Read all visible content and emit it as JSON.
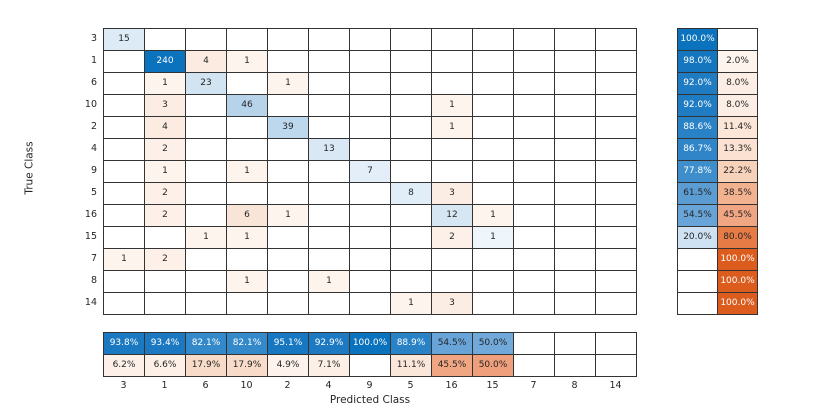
{
  "axes": {
    "xlabel": "Predicted Class",
    "ylabel": "True Class"
  },
  "chart_data": {
    "type": "heatmap",
    "subtype": "confusion_matrix",
    "classes": [
      "3",
      "1",
      "6",
      "10",
      "2",
      "4",
      "9",
      "5",
      "16",
      "15",
      "7",
      "8",
      "14"
    ],
    "matrix": [
      [
        15,
        0,
        0,
        0,
        0,
        0,
        0,
        0,
        0,
        0,
        0,
        0,
        0
      ],
      [
        0,
        240,
        4,
        1,
        0,
        0,
        0,
        0,
        0,
        0,
        0,
        0,
        0
      ],
      [
        0,
        1,
        23,
        0,
        1,
        0,
        0,
        0,
        0,
        0,
        0,
        0,
        0
      ],
      [
        0,
        3,
        0,
        46,
        0,
        0,
        0,
        0,
        1,
        0,
        0,
        0,
        0
      ],
      [
        0,
        4,
        0,
        0,
        39,
        0,
        0,
        0,
        1,
        0,
        0,
        0,
        0
      ],
      [
        0,
        2,
        0,
        0,
        0,
        13,
        0,
        0,
        0,
        0,
        0,
        0,
        0
      ],
      [
        0,
        1,
        0,
        1,
        0,
        0,
        7,
        0,
        0,
        0,
        0,
        0,
        0
      ],
      [
        0,
        2,
        0,
        0,
        0,
        0,
        0,
        8,
        3,
        0,
        0,
        0,
        0
      ],
      [
        0,
        2,
        0,
        6,
        1,
        0,
        0,
        0,
        12,
        1,
        0,
        0,
        0
      ],
      [
        0,
        0,
        1,
        1,
        0,
        0,
        0,
        0,
        2,
        1,
        0,
        0,
        0
      ],
      [
        1,
        2,
        0,
        0,
        0,
        0,
        0,
        0,
        0,
        0,
        0,
        0,
        0
      ],
      [
        0,
        0,
        0,
        1,
        0,
        1,
        0,
        0,
        0,
        0,
        0,
        0,
        0
      ],
      [
        0,
        0,
        0,
        0,
        0,
        0,
        0,
        1,
        3,
        0,
        0,
        0,
        0
      ]
    ],
    "row_summary": [
      {
        "correct": "100.0%",
        "correct_bg": "#0b72bd",
        "correct_fg": "#ffffff",
        "incorrect": "",
        "incorrect_bg": "#ffffff",
        "incorrect_fg": "#262626"
      },
      {
        "correct": "98.0%",
        "correct_bg": "#1376bf",
        "correct_fg": "#ffffff",
        "incorrect": "2.0%",
        "incorrect_bg": "#fdf4ee",
        "incorrect_fg": "#262626"
      },
      {
        "correct": "92.0%",
        "correct_bg": "#1f7cc3",
        "correct_fg": "#ffffff",
        "incorrect": "8.0%",
        "incorrect_bg": "#fceee4",
        "incorrect_fg": "#262626"
      },
      {
        "correct": "92.0%",
        "correct_bg": "#1f7cc3",
        "correct_fg": "#ffffff",
        "incorrect": "8.0%",
        "incorrect_bg": "#fceee4",
        "incorrect_fg": "#262626"
      },
      {
        "correct": "88.6%",
        "correct_bg": "#2a82c6",
        "correct_fg": "#ffffff",
        "incorrect": "11.4%",
        "incorrect_bg": "#fbe6d8",
        "incorrect_fg": "#262626"
      },
      {
        "correct": "86.7%",
        "correct_bg": "#2f85c8",
        "correct_fg": "#ffffff",
        "incorrect": "13.3%",
        "incorrect_bg": "#fae1d1",
        "incorrect_fg": "#262626"
      },
      {
        "correct": "77.8%",
        "correct_bg": "#3f8ecc",
        "correct_fg": "#ffffff",
        "incorrect": "22.2%",
        "incorrect_bg": "#f7d2bb",
        "incorrect_fg": "#262626"
      },
      {
        "correct": "61.5%",
        "correct_bg": "#5b9cd3",
        "correct_fg": "#262626",
        "incorrect": "38.5%",
        "incorrect_bg": "#f2b28f",
        "incorrect_fg": "#262626"
      },
      {
        "correct": "54.5%",
        "correct_bg": "#68a4d8",
        "correct_fg": "#262626",
        "incorrect": "45.5%",
        "incorrect_bg": "#f0a583",
        "incorrect_fg": "#262626"
      },
      {
        "correct": "20.0%",
        "correct_bg": "#cfe2f3",
        "correct_fg": "#262626",
        "incorrect": "80.0%",
        "incorrect_bg": "#e77b45",
        "incorrect_fg": "#262626"
      },
      {
        "correct": "",
        "correct_bg": "#ffffff",
        "correct_fg": "#262626",
        "incorrect": "100.0%",
        "incorrect_bg": "#dc5c1e",
        "incorrect_fg": "#ffffff"
      },
      {
        "correct": "",
        "correct_bg": "#ffffff",
        "correct_fg": "#262626",
        "incorrect": "100.0%",
        "incorrect_bg": "#dc5c1e",
        "incorrect_fg": "#ffffff"
      },
      {
        "correct": "",
        "correct_bg": "#ffffff",
        "correct_fg": "#262626",
        "incorrect": "100.0%",
        "incorrect_bg": "#dc5c1e",
        "incorrect_fg": "#ffffff"
      }
    ],
    "col_summary": [
      {
        "correct": "93.8%",
        "correct_bg": "#1b79c1",
        "correct_fg": "#ffffff",
        "incorrect": "6.2%",
        "incorrect_bg": "#fcf0e8",
        "incorrect_fg": "#262626"
      },
      {
        "correct": "93.4%",
        "correct_bg": "#1c79c1",
        "correct_fg": "#ffffff",
        "incorrect": "6.6%",
        "incorrect_bg": "#fcf0e7",
        "incorrect_fg": "#262626"
      },
      {
        "correct": "82.1%",
        "correct_bg": "#3489ca",
        "correct_fg": "#ffffff",
        "incorrect": "17.9%",
        "incorrect_bg": "#f8dbc8",
        "incorrect_fg": "#262626"
      },
      {
        "correct": "82.1%",
        "correct_bg": "#3489ca",
        "correct_fg": "#ffffff",
        "incorrect": "17.9%",
        "incorrect_bg": "#f8dbc8",
        "incorrect_fg": "#262626"
      },
      {
        "correct": "95.1%",
        "correct_bg": "#1777c0",
        "correct_fg": "#ffffff",
        "incorrect": "4.9%",
        "incorrect_bg": "#fdf2ec",
        "incorrect_fg": "#262626"
      },
      {
        "correct": "92.9%",
        "correct_bg": "#1d7ac2",
        "correct_fg": "#ffffff",
        "incorrect": "7.1%",
        "incorrect_bg": "#fcefe6",
        "incorrect_fg": "#262626"
      },
      {
        "correct": "100.0%",
        "correct_bg": "#0b72bd",
        "correct_fg": "#ffffff",
        "incorrect": "",
        "incorrect_bg": "#ffffff",
        "incorrect_fg": "#262626"
      },
      {
        "correct": "88.9%",
        "correct_bg": "#2a82c6",
        "correct_fg": "#ffffff",
        "incorrect": "11.1%",
        "incorrect_bg": "#fbe7d9",
        "incorrect_fg": "#262626"
      },
      {
        "correct": "54.5%",
        "correct_bg": "#68a4d8",
        "correct_fg": "#262626",
        "incorrect": "45.5%",
        "incorrect_bg": "#f0a583",
        "incorrect_fg": "#262626"
      },
      {
        "correct": "50.0%",
        "correct_bg": "#70a9da",
        "correct_fg": "#262626",
        "incorrect": "50.0%",
        "incorrect_bg": "#ef9f7b",
        "incorrect_fg": "#262626"
      },
      {
        "correct": "",
        "correct_bg": "#ffffff",
        "correct_fg": "#262626",
        "incorrect": "",
        "incorrect_bg": "#ffffff",
        "incorrect_fg": "#262626"
      },
      {
        "correct": "",
        "correct_bg": "#ffffff",
        "correct_fg": "#262626",
        "incorrect": "",
        "incorrect_bg": "#ffffff",
        "incorrect_fg": "#262626"
      },
      {
        "correct": "",
        "correct_bg": "#ffffff",
        "correct_fg": "#262626",
        "incorrect": "",
        "incorrect_bg": "#ffffff",
        "incorrect_fg": "#262626"
      }
    ]
  },
  "styles": {
    "text": "#262626",
    "grid_line": "#333333",
    "blue": "#0b72bd",
    "orange": "#dc5c1e",
    "diag_bg": {
      "1": "#eef5fb",
      "7": "#e3eef8",
      "8": "#e1edf7",
      "12": "#d6e6f3",
      "13": "#d9e8f4",
      "15": "#dcebf6",
      "23": "#d2e4f2",
      "39": "#bdd7ec",
      "46": "#b6d3ea",
      "240": "#0b72bd"
    },
    "offdiag_bg": {
      "1": "#fdf4ee",
      "2": "#fcf0e9",
      "3": "#fbede4",
      "4": "#fbebe0",
      "6": "#f9e5d7"
    }
  }
}
